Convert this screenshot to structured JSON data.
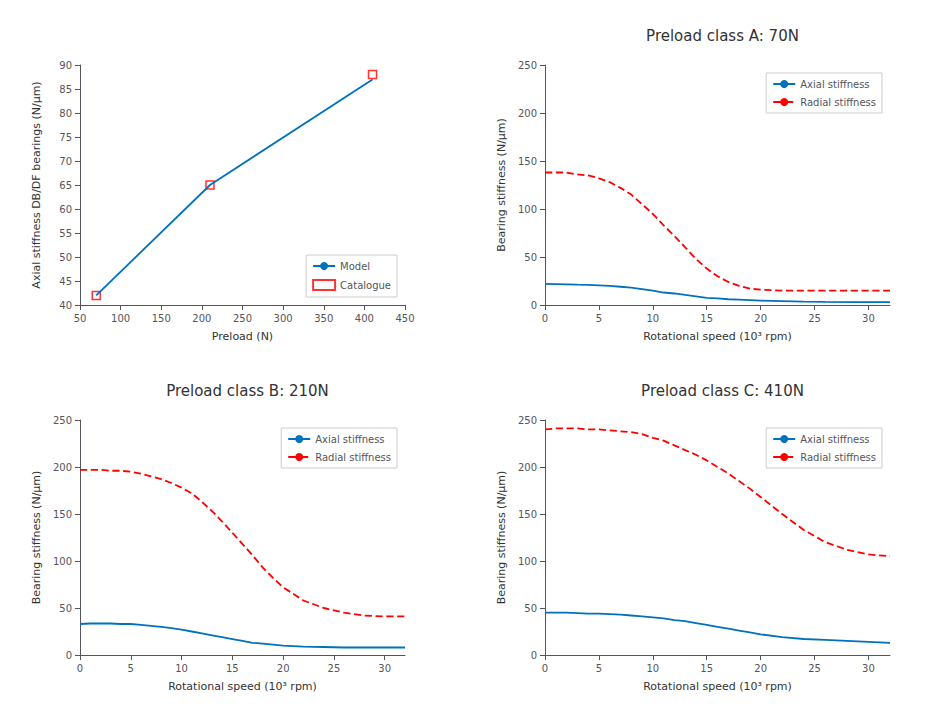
{
  "chart_data": [
    {
      "type": "line",
      "xlabel": "Preload (N)",
      "ylabel": "Axial stiffness DB/DF bearings (N/μm)",
      "x": [
        70,
        210,
        410
      ],
      "series": [
        {
          "name": "Model",
          "type": "line",
          "color": "#0072BD",
          "marker": "none",
          "line_style": "solid",
          "values": [
            42,
            65,
            87
          ]
        },
        {
          "name": "Catalogue",
          "type": "scatter",
          "color": "#FF0000",
          "marker": "square",
          "values": [
            42,
            65,
            88
          ]
        }
      ],
      "xlim": [
        50,
        450
      ],
      "ylim": [
        40,
        90
      ],
      "xticks": [
        50,
        100,
        150,
        200,
        250,
        300,
        350,
        400,
        450
      ],
      "yticks": [
        40,
        45,
        50,
        55,
        60,
        65,
        70,
        75,
        80,
        85,
        90
      ],
      "grid": false,
      "legend": "lower right"
    },
    {
      "type": "line",
      "title": "Preload class A: 70N",
      "xlabel": "Rotational speed (10³ rpm)",
      "ylabel": "Bearing stiffness (N/μm)",
      "x": [
        0,
        1,
        2,
        3,
        4,
        5,
        6,
        7,
        8,
        9,
        10,
        11,
        12,
        13,
        14,
        15,
        16,
        17,
        18,
        19,
        20,
        22,
        24,
        26,
        28,
        30,
        32
      ],
      "series": [
        {
          "name": "Axial stiffness",
          "color": "#0072BD",
          "line_style": "solid",
          "values": [
            22,
            21.8,
            21.5,
            21.2,
            21,
            20.5,
            20,
            19,
            18,
            16.5,
            15,
            13,
            12,
            10.5,
            9,
            7.5,
            7,
            6,
            5.5,
            5,
            4.5,
            4,
            3.5,
            3.2,
            3,
            3,
            3
          ]
        },
        {
          "name": "Radial stiffness",
          "color": "#FF0000",
          "line_style": "dashed",
          "values": [
            138,
            138,
            138,
            136,
            135,
            132,
            128,
            122,
            115,
            105,
            95,
            83,
            72,
            60,
            48,
            38,
            30,
            24,
            20,
            17,
            16,
            15,
            15,
            15,
            15,
            15,
            15
          ]
        }
      ],
      "xlim": [
        0,
        32
      ],
      "ylim": [
        0,
        250
      ],
      "xticks": [
        0,
        5,
        10,
        15,
        20,
        25,
        30
      ],
      "yticks": [
        0,
        50,
        100,
        150,
        200,
        250
      ],
      "grid": false,
      "legend": "upper right"
    },
    {
      "type": "line",
      "title": "Preload class B: 210N",
      "xlabel": "Rotational speed (10³ rpm)",
      "ylabel": "Bearing stiffness (N/μm)",
      "x": [
        0,
        1,
        2,
        3,
        4,
        5,
        6,
        7,
        8,
        9,
        10,
        11,
        12,
        13,
        14,
        15,
        16,
        17,
        18,
        19,
        20,
        22,
        24,
        26,
        28,
        30,
        32
      ],
      "series": [
        {
          "name": "Axial stiffness",
          "color": "#0072BD",
          "line_style": "solid",
          "values": [
            33,
            33.5,
            33.5,
            33.5,
            33,
            33,
            32,
            31,
            30,
            28.5,
            27,
            25,
            23,
            21,
            19,
            17,
            15,
            13,
            12,
            11,
            10,
            9,
            8.5,
            8,
            8,
            8,
            8
          ]
        },
        {
          "name": "Radial stiffness",
          "color": "#FF0000",
          "line_style": "dashed",
          "values": [
            197,
            197,
            197,
            196,
            196,
            195,
            193,
            190,
            187,
            183,
            178,
            172,
            163,
            153,
            142,
            130,
            118,
            106,
            93,
            82,
            72,
            58,
            50,
            45,
            42,
            41,
            41
          ]
        }
      ],
      "xlim": [
        0,
        32
      ],
      "ylim": [
        0,
        250
      ],
      "xticks": [
        0,
        5,
        10,
        15,
        20,
        25,
        30
      ],
      "yticks": [
        0,
        50,
        100,
        150,
        200,
        250
      ],
      "grid": false,
      "legend": "upper right"
    },
    {
      "type": "line",
      "title": "Preload class C: 410N",
      "xlabel": "Rotational speed (10³ rpm)",
      "ylabel": "Bearing stiffness (N/μm)",
      "x": [
        0,
        1,
        2,
        3,
        4,
        5,
        6,
        7,
        8,
        9,
        10,
        11,
        12,
        13,
        14,
        15,
        16,
        17,
        18,
        19,
        20,
        22,
        24,
        26,
        28,
        30,
        32
      ],
      "series": [
        {
          "name": "Axial stiffness",
          "color": "#0072BD",
          "line_style": "solid",
          "values": [
            45,
            45,
            45,
            44.5,
            44,
            44,
            43.5,
            43,
            42,
            41,
            40,
            39,
            37,
            36,
            34,
            32,
            30,
            28,
            26,
            24,
            22,
            19,
            17,
            16,
            15,
            14,
            13
          ]
        },
        {
          "name": "Radial stiffness",
          "color": "#FF0000",
          "line_style": "dashed",
          "values": [
            240,
            241,
            241,
            241,
            240,
            240,
            239,
            238,
            237,
            235,
            231,
            228,
            223,
            218,
            213,
            207,
            200,
            193,
            185,
            177,
            168,
            150,
            133,
            120,
            112,
            107,
            105
          ]
        }
      ],
      "xlim": [
        0,
        32
      ],
      "ylim": [
        0,
        250
      ],
      "xticks": [
        0,
        5,
        10,
        15,
        20,
        25,
        30
      ],
      "yticks": [
        0,
        50,
        100,
        150,
        200,
        250
      ],
      "grid": false,
      "legend": "upper right"
    }
  ]
}
